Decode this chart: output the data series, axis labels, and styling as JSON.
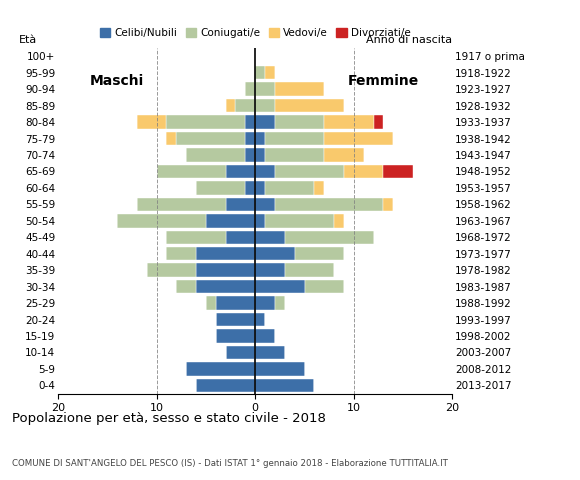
{
  "age_groups": [
    "0-4",
    "5-9",
    "10-14",
    "15-19",
    "20-24",
    "25-29",
    "30-34",
    "35-39",
    "40-44",
    "45-49",
    "50-54",
    "55-59",
    "60-64",
    "65-69",
    "70-74",
    "75-79",
    "80-84",
    "85-89",
    "90-94",
    "95-99",
    "100+"
  ],
  "birth_years": [
    "2013-2017",
    "2008-2012",
    "2003-2007",
    "1998-2002",
    "1993-1997",
    "1988-1992",
    "1983-1987",
    "1978-1982",
    "1973-1977",
    "1968-1972",
    "1963-1967",
    "1958-1962",
    "1953-1957",
    "1948-1952",
    "1943-1947",
    "1938-1942",
    "1933-1937",
    "1928-1932",
    "1923-1927",
    "1918-1922",
    "1917 o prima"
  ],
  "colors": {
    "celibe": "#3D6FA8",
    "coniugato": "#B5C9A0",
    "vedovo": "#F9C96C",
    "divorziato": "#CC2222"
  },
  "maschi": {
    "celibe": [
      6,
      7,
      3,
      4,
      4,
      4,
      6,
      6,
      6,
      3,
      5,
      3,
      1,
      3,
      1,
      1,
      1,
      0,
      0,
      0,
      0
    ],
    "coniugato": [
      0,
      0,
      0,
      0,
      0,
      1,
      2,
      5,
      3,
      6,
      9,
      9,
      5,
      7,
      6,
      7,
      8,
      2,
      1,
      0,
      0
    ],
    "vedovo": [
      0,
      0,
      0,
      0,
      0,
      0,
      0,
      0,
      0,
      0,
      0,
      0,
      0,
      0,
      0,
      1,
      3,
      1,
      0,
      0,
      0
    ],
    "divorziato": [
      0,
      0,
      0,
      0,
      0,
      0,
      0,
      0,
      0,
      0,
      0,
      0,
      0,
      0,
      0,
      0,
      0,
      0,
      0,
      0,
      0
    ]
  },
  "femmine": {
    "celibe": [
      6,
      5,
      3,
      2,
      1,
      2,
      5,
      3,
      4,
      3,
      1,
      2,
      1,
      2,
      1,
      1,
      2,
      0,
      0,
      0,
      0
    ],
    "coniugato": [
      0,
      0,
      0,
      0,
      0,
      1,
      4,
      5,
      5,
      9,
      7,
      11,
      5,
      7,
      6,
      6,
      5,
      2,
      2,
      1,
      0
    ],
    "vedovo": [
      0,
      0,
      0,
      0,
      0,
      0,
      0,
      0,
      0,
      0,
      1,
      1,
      1,
      4,
      4,
      7,
      5,
      7,
      5,
      1,
      0
    ],
    "divorziato": [
      0,
      0,
      0,
      0,
      0,
      0,
      0,
      0,
      0,
      0,
      0,
      0,
      0,
      3,
      0,
      0,
      1,
      0,
      0,
      0,
      0
    ]
  },
  "xlim": 20,
  "title": "Popolazione per età, sesso e stato civile - 2018",
  "subtitle": "COMUNE DI SANT'ANGELO DEL PESCO (IS) - Dati ISTAT 1° gennaio 2018 - Elaborazione TUTTITALIA.IT",
  "eta_label": "Età",
  "label_maschi": "Maschi",
  "label_femmine": "Femmine",
  "legend_labels": [
    "Celibi/Nubili",
    "Coniugati/e",
    "Vedovi/e",
    "Divorziati/e"
  ],
  "anno_nascita_label": "Anno di nascita"
}
